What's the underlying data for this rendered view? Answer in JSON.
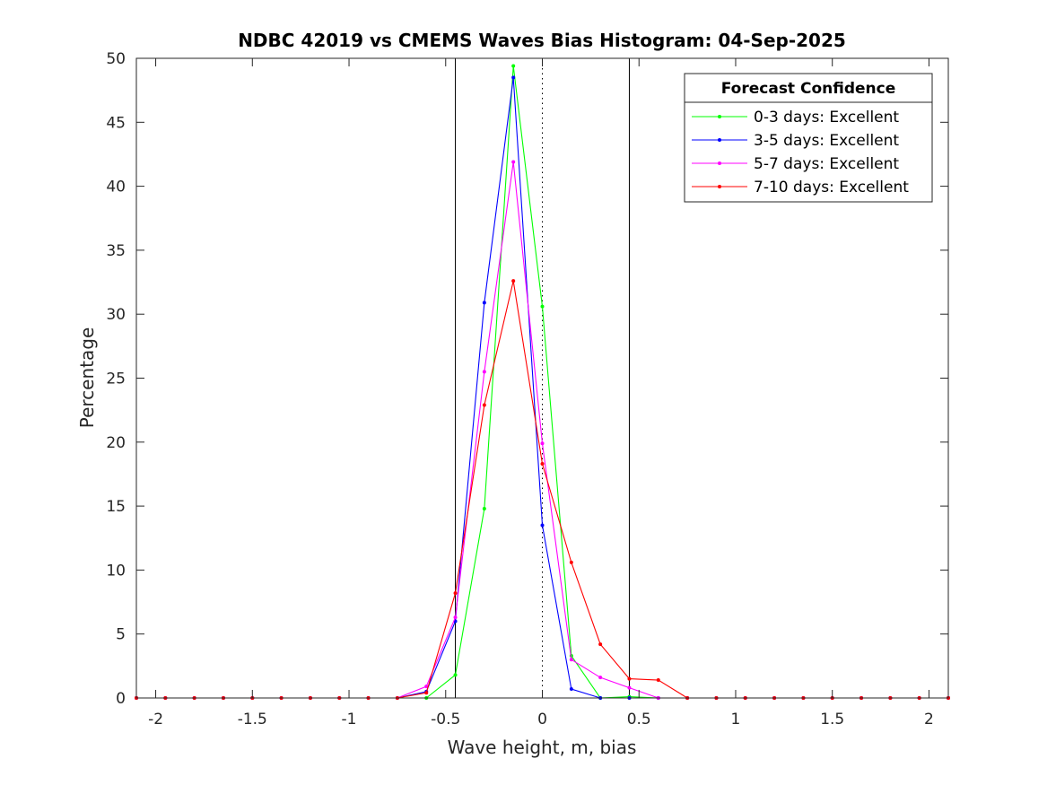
{
  "chart_data": {
    "type": "line",
    "title": "NDBC 42019 vs CMEMS Waves Bias Histogram: 04-Sep-2025",
    "xlabel": "Wave height, m, bias",
    "ylabel": "Percentage",
    "xlim": [
      -2.1,
      2.1
    ],
    "ylim": [
      0,
      50
    ],
    "xticks": [
      -2,
      -1.5,
      -1,
      -0.5,
      0,
      0.5,
      1,
      1.5,
      2
    ],
    "xtick_labels": [
      "-2",
      "-1.5",
      "-1",
      "-0.5",
      "0",
      "0.5",
      "1",
      "1.5",
      "2"
    ],
    "yticks": [
      0,
      5,
      10,
      15,
      20,
      25,
      30,
      35,
      40,
      45,
      50
    ],
    "ytick_labels": [
      "0",
      "5",
      "10",
      "15",
      "20",
      "25",
      "30",
      "35",
      "40",
      "45",
      "50"
    ],
    "grid": false,
    "vertical_lines": [
      {
        "x": -0.45,
        "style": "solid"
      },
      {
        "x": 0,
        "style": "dotted"
      },
      {
        "x": 0.45,
        "style": "solid"
      }
    ],
    "legend": {
      "title": "Forecast Confidence",
      "location": "top-right"
    },
    "x": [
      -2.1,
      -1.95,
      -1.8,
      -1.65,
      -1.5,
      -1.35,
      -1.2,
      -1.05,
      -0.9,
      -0.75,
      -0.6,
      -0.45,
      -0.3,
      -0.15,
      0,
      0.15,
      0.3,
      0.45,
      0.6,
      0.75,
      0.9,
      1.05,
      1.2,
      1.35,
      1.5,
      1.65,
      1.8,
      1.95,
      2.1
    ],
    "series": [
      {
        "name": "0-3 days: Excellent",
        "color": "#00ff00",
        "values": [
          0,
          0,
          0,
          0,
          0,
          0,
          0,
          0,
          0,
          0,
          0,
          1.8,
          14.8,
          49.4,
          30.6,
          3.3,
          0,
          0.1,
          0,
          0,
          0,
          0,
          0,
          0,
          0,
          0,
          0,
          0,
          0
        ]
      },
      {
        "name": "3-5 days: Excellent",
        "color": "#0000ff",
        "values": [
          0,
          0,
          0,
          0,
          0,
          0,
          0,
          0,
          0,
          0,
          0.5,
          6.0,
          30.9,
          48.5,
          13.5,
          0.7,
          0,
          0,
          0,
          0,
          0,
          0,
          0,
          0,
          0,
          0,
          0,
          0,
          0
        ]
      },
      {
        "name": "5-7 days: Excellent",
        "color": "#ff00ff",
        "values": [
          0,
          0,
          0,
          0,
          0,
          0,
          0,
          0,
          0,
          0,
          0.9,
          6.3,
          25.5,
          41.9,
          19.9,
          3.0,
          1.6,
          0.8,
          0,
          0,
          0,
          0,
          0,
          0,
          0,
          0,
          0,
          0,
          0
        ]
      },
      {
        "name": "7-10 days: Excellent",
        "color": "#ff0000",
        "values": [
          0,
          0,
          0,
          0,
          0,
          0,
          0,
          0,
          0,
          0,
          0.4,
          8.2,
          22.9,
          32.6,
          18.3,
          10.6,
          4.2,
          1.5,
          1.4,
          0,
          0,
          0,
          0,
          0,
          0,
          0,
          0,
          0,
          0
        ]
      }
    ]
  }
}
